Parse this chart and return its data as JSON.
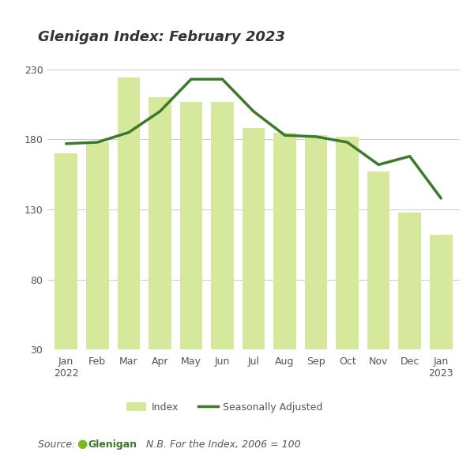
{
  "title": "Glenigan Index: February 2023",
  "categories": [
    "Jan\n2022",
    "Feb",
    "Mar",
    "Apr",
    "May",
    "Jun",
    "Jul",
    "Aug",
    "Sep",
    "Oct",
    "Nov",
    "Dec",
    "Jan\n2023"
  ],
  "bar_values": [
    170,
    178,
    224,
    210,
    207,
    207,
    188,
    185,
    183,
    182,
    157,
    128,
    112
  ],
  "line_values": [
    177,
    178,
    185,
    200,
    223,
    223,
    200,
    183,
    182,
    178,
    162,
    168,
    138
  ],
  "bar_color": "#d6e89c",
  "line_color": "#3a7a2a",
  "background_color": "#ffffff",
  "ylim": [
    30,
    250
  ],
  "yticks": [
    30,
    80,
    130,
    180,
    230
  ],
  "grid_color": "#cccccc",
  "legend_bar_label": "Index",
  "legend_line_label": "Seasonally Adjusted",
  "title_fontsize": 13,
  "axis_fontsize": 9,
  "legend_fontsize": 9,
  "source_fontsize": 9,
  "line_width": 2.5,
  "bar_width": 0.72,
  "title_color": "#333333",
  "tick_color": "#555555"
}
